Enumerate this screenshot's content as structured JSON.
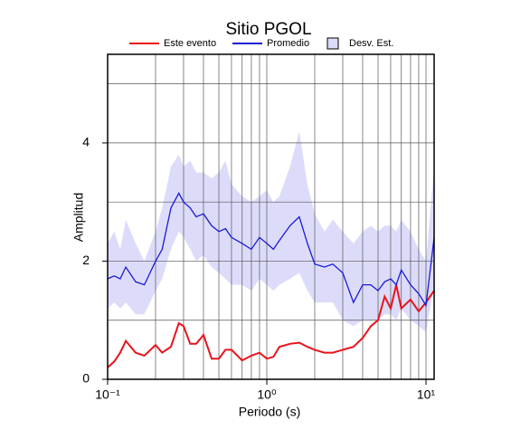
{
  "chart_data": {
    "type": "line",
    "title": "Sitio PGOL",
    "xlabel": "Periodo (s)",
    "ylabel": "Amplitud",
    "xscale": "log",
    "grid": true,
    "xlim": [
      0.1,
      11.25
    ],
    "ylim": [
      0,
      5.5
    ],
    "xticks": [
      {
        "value": 0.1,
        "label": "10⁻¹"
      },
      {
        "value": 1,
        "label": "10⁰"
      },
      {
        "value": 10,
        "label": "10¹"
      }
    ],
    "xminor_ticks": [
      0.2,
      0.3,
      0.4,
      0.5,
      0.6,
      0.7,
      0.8,
      0.9,
      2,
      3,
      4,
      5,
      6,
      7,
      8,
      9
    ],
    "yticks": [
      0,
      2,
      4
    ],
    "yminor_ticks": [
      1,
      3,
      5
    ],
    "x": [
      0.1,
      0.11,
      0.12,
      0.13,
      0.15,
      0.17,
      0.2,
      0.22,
      0.25,
      0.28,
      0.3,
      0.33,
      0.36,
      0.4,
      0.45,
      0.5,
      0.55,
      0.6,
      0.7,
      0.8,
      0.9,
      1.0,
      1.1,
      1.2,
      1.4,
      1.6,
      1.8,
      2.0,
      2.3,
      2.6,
      3.0,
      3.5,
      4,
      4.5,
      5,
      5.5,
      6,
      6.5,
      7,
      8,
      9,
      10,
      11.25
    ],
    "series": [
      {
        "name": "Este evento",
        "color": "#e8141c",
        "values": [
          0.2,
          0.3,
          0.45,
          0.65,
          0.45,
          0.4,
          0.58,
          0.45,
          0.55,
          0.95,
          0.9,
          0.6,
          0.6,
          0.75,
          0.35,
          0.35,
          0.5,
          0.5,
          0.32,
          0.4,
          0.45,
          0.35,
          0.38,
          0.55,
          0.6,
          0.62,
          0.55,
          0.5,
          0.45,
          0.45,
          0.5,
          0.55,
          0.7,
          0.9,
          1.0,
          1.4,
          1.2,
          1.6,
          1.2,
          1.35,
          1.15,
          1.3,
          1.5
        ]
      },
      {
        "name": "Promedio",
        "color": "#1a1ad6",
        "values": [
          1.7,
          1.75,
          1.7,
          1.9,
          1.65,
          1.6,
          2.0,
          2.2,
          2.9,
          3.15,
          3.0,
          2.9,
          2.75,
          2.8,
          2.6,
          2.5,
          2.55,
          2.4,
          2.3,
          2.2,
          2.4,
          2.3,
          2.2,
          2.35,
          2.6,
          2.75,
          2.3,
          1.95,
          1.9,
          1.95,
          1.8,
          1.3,
          1.6,
          1.6,
          1.5,
          1.65,
          1.7,
          1.6,
          1.85,
          1.6,
          1.45,
          1.25,
          2.4
        ]
      },
      {
        "name": "Desv. Est.",
        "color": "#dcdcfa",
        "upper": [
          2.3,
          2.5,
          2.2,
          2.7,
          2.3,
          2.0,
          2.5,
          2.9,
          3.6,
          3.8,
          3.6,
          3.7,
          3.5,
          3.5,
          3.4,
          3.5,
          3.7,
          3.3,
          3.1,
          3.0,
          3.1,
          3.2,
          3.0,
          3.1,
          3.6,
          4.2,
          3.3,
          2.8,
          2.5,
          2.7,
          2.5,
          2.3,
          2.5,
          2.6,
          2.5,
          2.6,
          2.6,
          2.5,
          2.7,
          2.5,
          2.2,
          2.0,
          3.6
        ],
        "lower": [
          1.2,
          1.3,
          1.2,
          1.3,
          1.1,
          1.1,
          1.5,
          1.7,
          2.2,
          2.5,
          2.4,
          2.2,
          2.0,
          2.1,
          1.9,
          1.8,
          1.7,
          1.6,
          1.6,
          1.5,
          1.7,
          1.6,
          1.5,
          1.6,
          1.7,
          1.8,
          1.5,
          1.3,
          1.3,
          1.3,
          1.0,
          0.9,
          1.0,
          1.0,
          1.0,
          1.1,
          1.1,
          1.0,
          1.2,
          1.0,
          0.9,
          0.8,
          1.6
        ]
      }
    ]
  }
}
